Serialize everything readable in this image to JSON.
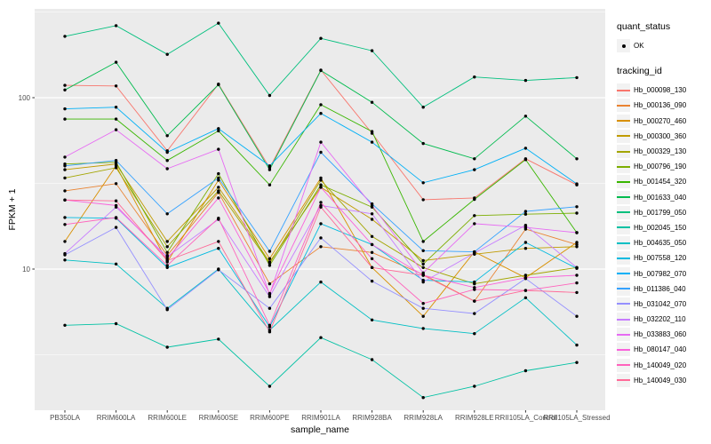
{
  "figure": {
    "background": "#FFFFFF",
    "panel_background": "#EBEBEB",
    "grid_color": "#FFFFFF",
    "tick_color": "#333333",
    "tick_label_color": "#4D4D4D"
  },
  "axes": {
    "y_title": "FPKM + 1",
    "x_title": "sample_name",
    "y_tick_labels": [
      "100",
      "10"
    ]
  },
  "legend": {
    "quant_status": {
      "title": "quant_status",
      "entries": [
        {
          "label": "OK",
          "marker": "point",
          "color": "#000000"
        }
      ]
    },
    "tracking_id": {
      "title": "tracking_id"
    }
  },
  "chart_data": {
    "type": "line",
    "title": "",
    "xlabel": "sample_name",
    "ylabel": "FPKM + 1",
    "y_scale": "log10",
    "y_ticks": [
      10,
      100
    ],
    "y_minor_ticks": [
      3.162,
      31.62,
      316.2
    ],
    "ylim": [
      1.5,
      340
    ],
    "grid": true,
    "legend_position": "right",
    "marker_color": "#000000",
    "categories": [
      "PB350LA",
      "RRIM600LA",
      "RRIM600LE",
      "RRIM600SE",
      "RRIM600PE",
      "RRIM901LA",
      "RRIM928BA",
      "RRIM928LA",
      "RRIM928LE",
      "RRII105LA_Control",
      "RRII105LA_Stressed"
    ],
    "series": [
      {
        "tracking_id": "Hb_000098_130",
        "color": "#F8766D",
        "values": [
          118,
          117,
          49,
          120,
          39,
          145,
          62,
          25.4,
          26,
          44,
          31
        ]
      },
      {
        "tracking_id": "Hb_000136_090",
        "color": "#EA8331",
        "values": [
          28.6,
          31.5,
          12,
          28,
          8.2,
          13.5,
          12.5,
          9.3,
          6.5,
          17.1,
          13.9
        ]
      },
      {
        "tracking_id": "Hb_000270_460",
        "color": "#D89000",
        "values": [
          14.5,
          40,
          11,
          33,
          11.5,
          34,
          10.2,
          5.3,
          12.6,
          8.9,
          14.3
        ]
      },
      {
        "tracking_id": "Hb_000300_360",
        "color": "#C09B00",
        "values": [
          38,
          41,
          14.5,
          30,
          11,
          30,
          19.5,
          11.2,
          12.2,
          13.2,
          13.5
        ]
      },
      {
        "tracking_id": "Hb_000329_130",
        "color": "#A3A500",
        "values": [
          34,
          39,
          13.5,
          28.6,
          10.8,
          33,
          15.5,
          10.2,
          8.2,
          9.2,
          10.2
        ]
      },
      {
        "tracking_id": "Hb_000796_190",
        "color": "#7CAE00",
        "values": [
          41,
          42,
          12.5,
          36,
          10.5,
          31,
          23,
          10.7,
          20.5,
          20.9,
          21.2
        ]
      },
      {
        "tracking_id": "Hb_001454_320",
        "color": "#39B600",
        "values": [
          75,
          75,
          43,
          64,
          31,
          91,
          63.5,
          14.5,
          25.5,
          43.5,
          16.3
        ]
      },
      {
        "tracking_id": "Hb_001633_040",
        "color": "#00BB4E",
        "values": [
          111,
          161,
          60,
          119,
          38,
          144,
          94,
          54,
          44,
          78,
          44
        ]
      },
      {
        "tracking_id": "Hb_001799_050",
        "color": "#00BF7D",
        "values": [
          228,
          263,
          179,
          272,
          103,
          222,
          188,
          88,
          132,
          126,
          131
        ]
      },
      {
        "tracking_id": "Hb_002045_150",
        "color": "#00C1A3",
        "values": [
          4.7,
          4.8,
          3.5,
          3.9,
          2.07,
          3.98,
          2.96,
          1.78,
          2.07,
          2.55,
          2.85
        ]
      },
      {
        "tracking_id": "Hb_004635_050",
        "color": "#00BFC4",
        "values": [
          11.3,
          10.7,
          5.9,
          10,
          4.4,
          8.4,
          5.05,
          4.5,
          4.2,
          6.8,
          3.6
        ]
      },
      {
        "tracking_id": "Hb_007558_120",
        "color": "#00BAE0",
        "values": [
          20,
          19.8,
          10.2,
          13.2,
          4.6,
          18.4,
          13.9,
          8.6,
          8.4,
          14.3,
          10.1
        ]
      },
      {
        "tracking_id": "Hb_007982_070",
        "color": "#00B0F6",
        "values": [
          86,
          88,
          48,
          66,
          40,
          81,
          55,
          31.9,
          38,
          50.7,
          31.4
        ]
      },
      {
        "tracking_id": "Hb_011386_040",
        "color": "#35A2FF",
        "values": [
          40,
          43,
          21,
          34,
          12.7,
          48,
          24,
          12.8,
          12.6,
          21.7,
          23.1
        ]
      },
      {
        "tracking_id": "Hb_031042_070",
        "color": "#9590FF",
        "values": [
          12.1,
          17.5,
          5.8,
          9.9,
          5.9,
          15.2,
          8.5,
          5.9,
          5.5,
          8.8,
          5.3
        ]
      },
      {
        "tracking_id": "Hb_032202_110",
        "color": "#C77CFF",
        "values": [
          12.3,
          23,
          11.8,
          19.5,
          6.9,
          23.5,
          21,
          8.4,
          12.4,
          18,
          10.2
        ]
      },
      {
        "tracking_id": "Hb_033883_060",
        "color": "#E76BF3",
        "values": [
          45,
          65,
          38.5,
          50,
          7.1,
          55,
          23.5,
          9.5,
          18.4,
          17.5,
          16.3
        ]
      },
      {
        "tracking_id": "Hb_080147_040",
        "color": "#FA62DB",
        "values": [
          25.3,
          23.5,
          11.5,
          26,
          7.2,
          30,
          13.9,
          9.2,
          7.8,
          8.9,
          9.2
        ]
      },
      {
        "tracking_id": "Hb_140049_020",
        "color": "#FF62BC",
        "values": [
          18.2,
          20,
          10.5,
          19.8,
          4.7,
          24.5,
          11.5,
          6.3,
          7.6,
          7.5,
          8.3
        ]
      },
      {
        "tracking_id": "Hb_140049_030",
        "color": "#FF6A98",
        "values": [
          25.3,
          25,
          11.2,
          14.5,
          4.3,
          23,
          10.2,
          9.2,
          6.5,
          7.5,
          7.3
        ]
      }
    ]
  }
}
